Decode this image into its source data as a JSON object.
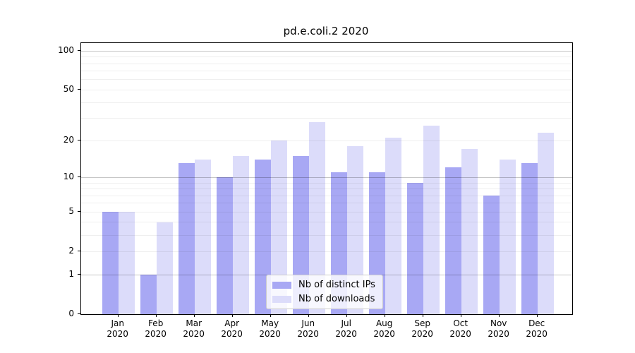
{
  "chart_data": {
    "type": "bar",
    "title": "pd.e.coli.2 2020",
    "year": "2020",
    "months": [
      "Jan",
      "Feb",
      "Mar",
      "Apr",
      "May",
      "Jun",
      "Jul",
      "Aug",
      "Sep",
      "Oct",
      "Nov",
      "Dec"
    ],
    "series": [
      {
        "name": "Nb of distinct IPs",
        "color": "#a8a8f4",
        "values": [
          5,
          1,
          13,
          10,
          14,
          15,
          11,
          11,
          9,
          12,
          7,
          13
        ]
      },
      {
        "name": "Nb of downloads",
        "color": "#dcdcfa",
        "values": [
          5,
          4,
          14,
          15,
          20,
          28,
          18,
          21,
          26,
          17,
          14,
          23
        ]
      }
    ],
    "scale": "log1p",
    "y_ticks": [
      0,
      1,
      2,
      5,
      10,
      20,
      50,
      100
    ],
    "major_gridlines": [
      1,
      10,
      100
    ],
    "minor_gridlines": [
      2,
      3,
      4,
      5,
      6,
      7,
      8,
      9,
      20,
      30,
      40,
      50,
      60,
      70,
      80,
      90
    ],
    "ylim": [
      0,
      114
    ],
    "grid": true,
    "legend_position": "lower-center",
    "xlabel": "",
    "ylabel": ""
  }
}
